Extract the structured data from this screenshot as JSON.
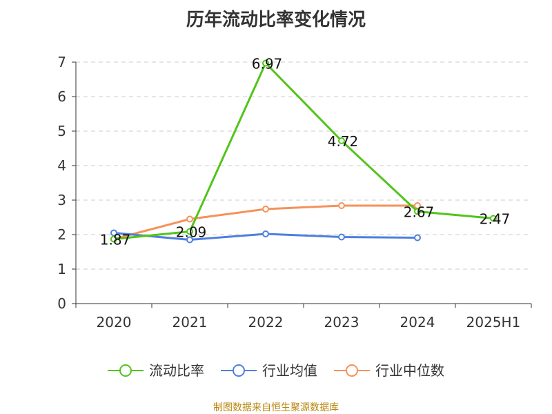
{
  "chart_data": {
    "type": "line",
    "title": "历年流动比率变化情况",
    "categories": [
      "2020",
      "2021",
      "2022",
      "2023",
      "2024",
      "2025H1"
    ],
    "ylim": [
      0,
      7
    ],
    "y_ticks": [
      0,
      1,
      2,
      3,
      4,
      5,
      6,
      7
    ],
    "grid": "horizontal-dashed",
    "legend_position": "bottom",
    "series": [
      {
        "name": "流动比率",
        "color": "#52c41a",
        "values": [
          1.87,
          2.09,
          6.97,
          4.72,
          2.67,
          2.47
        ],
        "labels": [
          "1.87",
          "2.09",
          "6.97",
          "4.72",
          "2.67",
          "2.47"
        ]
      },
      {
        "name": "行业均值",
        "color": "#4e7fde",
        "values": [
          2.05,
          1.85,
          2.02,
          1.93,
          1.91,
          null
        ]
      },
      {
        "name": "行业中位数",
        "color": "#f5915a",
        "values": [
          1.87,
          2.45,
          2.74,
          2.84,
          2.84,
          null
        ]
      }
    ]
  },
  "source_note": "制图数据来自恒生聚源数据库"
}
